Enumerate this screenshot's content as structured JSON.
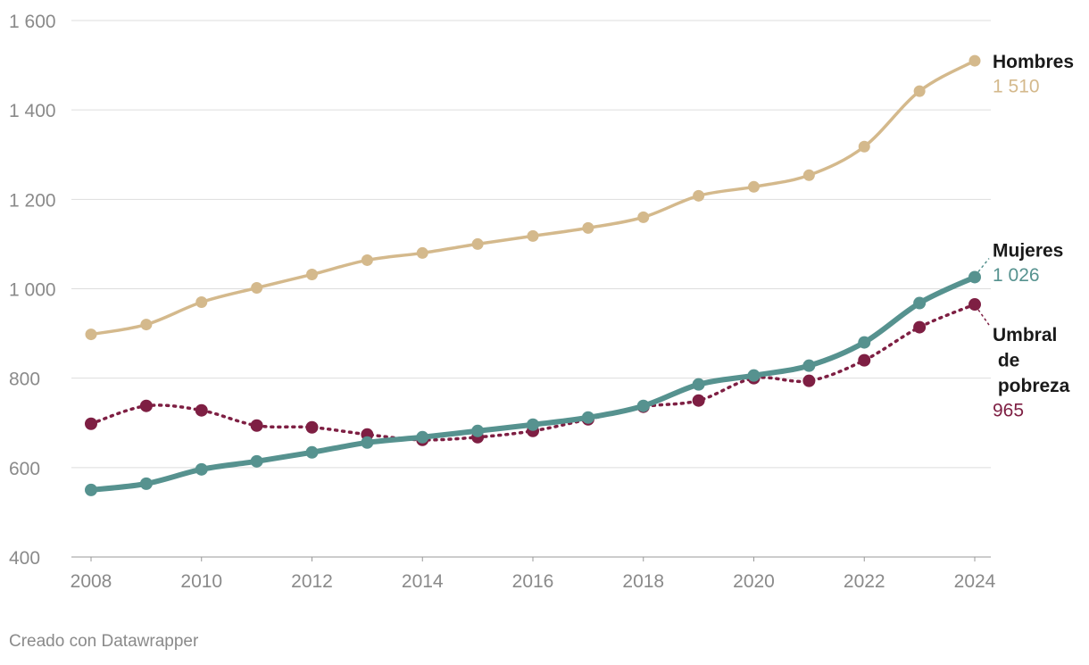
{
  "chart_data": {
    "type": "line",
    "x": [
      2008,
      2009,
      2010,
      2011,
      2012,
      2013,
      2014,
      2015,
      2016,
      2017,
      2018,
      2019,
      2020,
      2021,
      2022,
      2023,
      2024
    ],
    "xlim": [
      2008,
      2024
    ],
    "xticks": [
      2008,
      2010,
      2012,
      2014,
      2016,
      2018,
      2020,
      2022,
      2024
    ],
    "ylim": [
      400,
      1600
    ],
    "yticks": [
      400,
      600,
      800,
      {
        "value": 1000,
        "label": "1 000"
      },
      {
        "value": 1200,
        "label": "1 200"
      },
      {
        "value": 1400,
        "label": "1 400"
      },
      {
        "value": 1600,
        "label": "1 600"
      }
    ],
    "grid": true,
    "series": [
      {
        "name": "Hombres",
        "color": "#d4b98c",
        "line_style": "solid",
        "values": [
          898,
          920,
          970,
          1002,
          1032,
          1064,
          1080,
          1100,
          1118,
          1136,
          1160,
          1208,
          1228,
          1254,
          1318,
          1442,
          1510
        ],
        "value_labels": [
          null,
          null,
          null,
          null,
          null,
          null,
          null,
          null,
          null,
          null,
          null,
          null,
          null,
          null,
          null,
          null,
          "1 510"
        ]
      },
      {
        "name": "Mujeres",
        "color": "#56928f",
        "line_style": "bold",
        "values": [
          550,
          564,
          596,
          614,
          634,
          656,
          668,
          682,
          696,
          712,
          738,
          786,
          806,
          828,
          880,
          968,
          1026
        ],
        "value_labels": [
          null,
          null,
          null,
          null,
          null,
          null,
          null,
          null,
          null,
          null,
          null,
          null,
          null,
          null,
          null,
          null,
          "1 026"
        ]
      },
      {
        "name": "Umbral de pobreza",
        "color": "#7e1f43",
        "line_style": "dotted",
        "values": [
          698,
          738,
          728,
          694,
          690,
          674,
          662,
          668,
          682,
          708,
          736,
          750,
          800,
          794,
          840,
          914,
          965
        ]
      }
    ],
    "footer": "Creado con Datawrapper"
  }
}
